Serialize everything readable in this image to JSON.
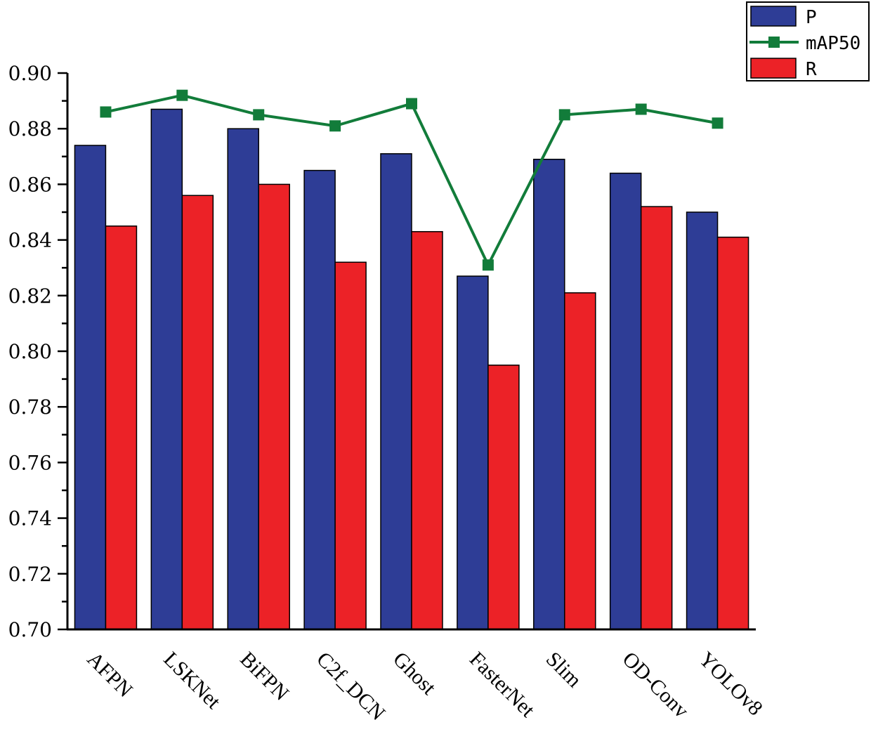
{
  "chart_data": {
    "type": "bar",
    "categories": [
      "AFPN",
      "LSKNet",
      "BiFPN",
      "C2f_DCN",
      "Ghost",
      "FasterNet",
      "Slim",
      "OD-Conv",
      "YOLOv8"
    ],
    "series": [
      {
        "name": "P",
        "kind": "bar",
        "color": "#2e3d96",
        "values": [
          0.874,
          0.887,
          0.88,
          0.865,
          0.871,
          0.827,
          0.869,
          0.864,
          0.85
        ]
      },
      {
        "name": "R",
        "kind": "bar",
        "color": "#ec2227",
        "values": [
          0.845,
          0.856,
          0.86,
          0.832,
          0.843,
          0.795,
          0.821,
          0.852,
          0.841
        ]
      },
      {
        "name": "mAP50",
        "kind": "line",
        "color": "#127c3a",
        "values": [
          0.886,
          0.892,
          0.885,
          0.881,
          0.889,
          0.831,
          0.885,
          0.887,
          0.882
        ]
      }
    ],
    "ylim": [
      0.7,
      0.9
    ],
    "yticks": [
      "0.70",
      "0.72",
      "0.74",
      "0.76",
      "0.78",
      "0.80",
      "0.82",
      "0.84",
      "0.86",
      "0.88",
      "0.90"
    ],
    "legend": {
      "placement": "top-right",
      "order": [
        "P",
        "mAP50",
        "R"
      ]
    },
    "grid": false
  }
}
